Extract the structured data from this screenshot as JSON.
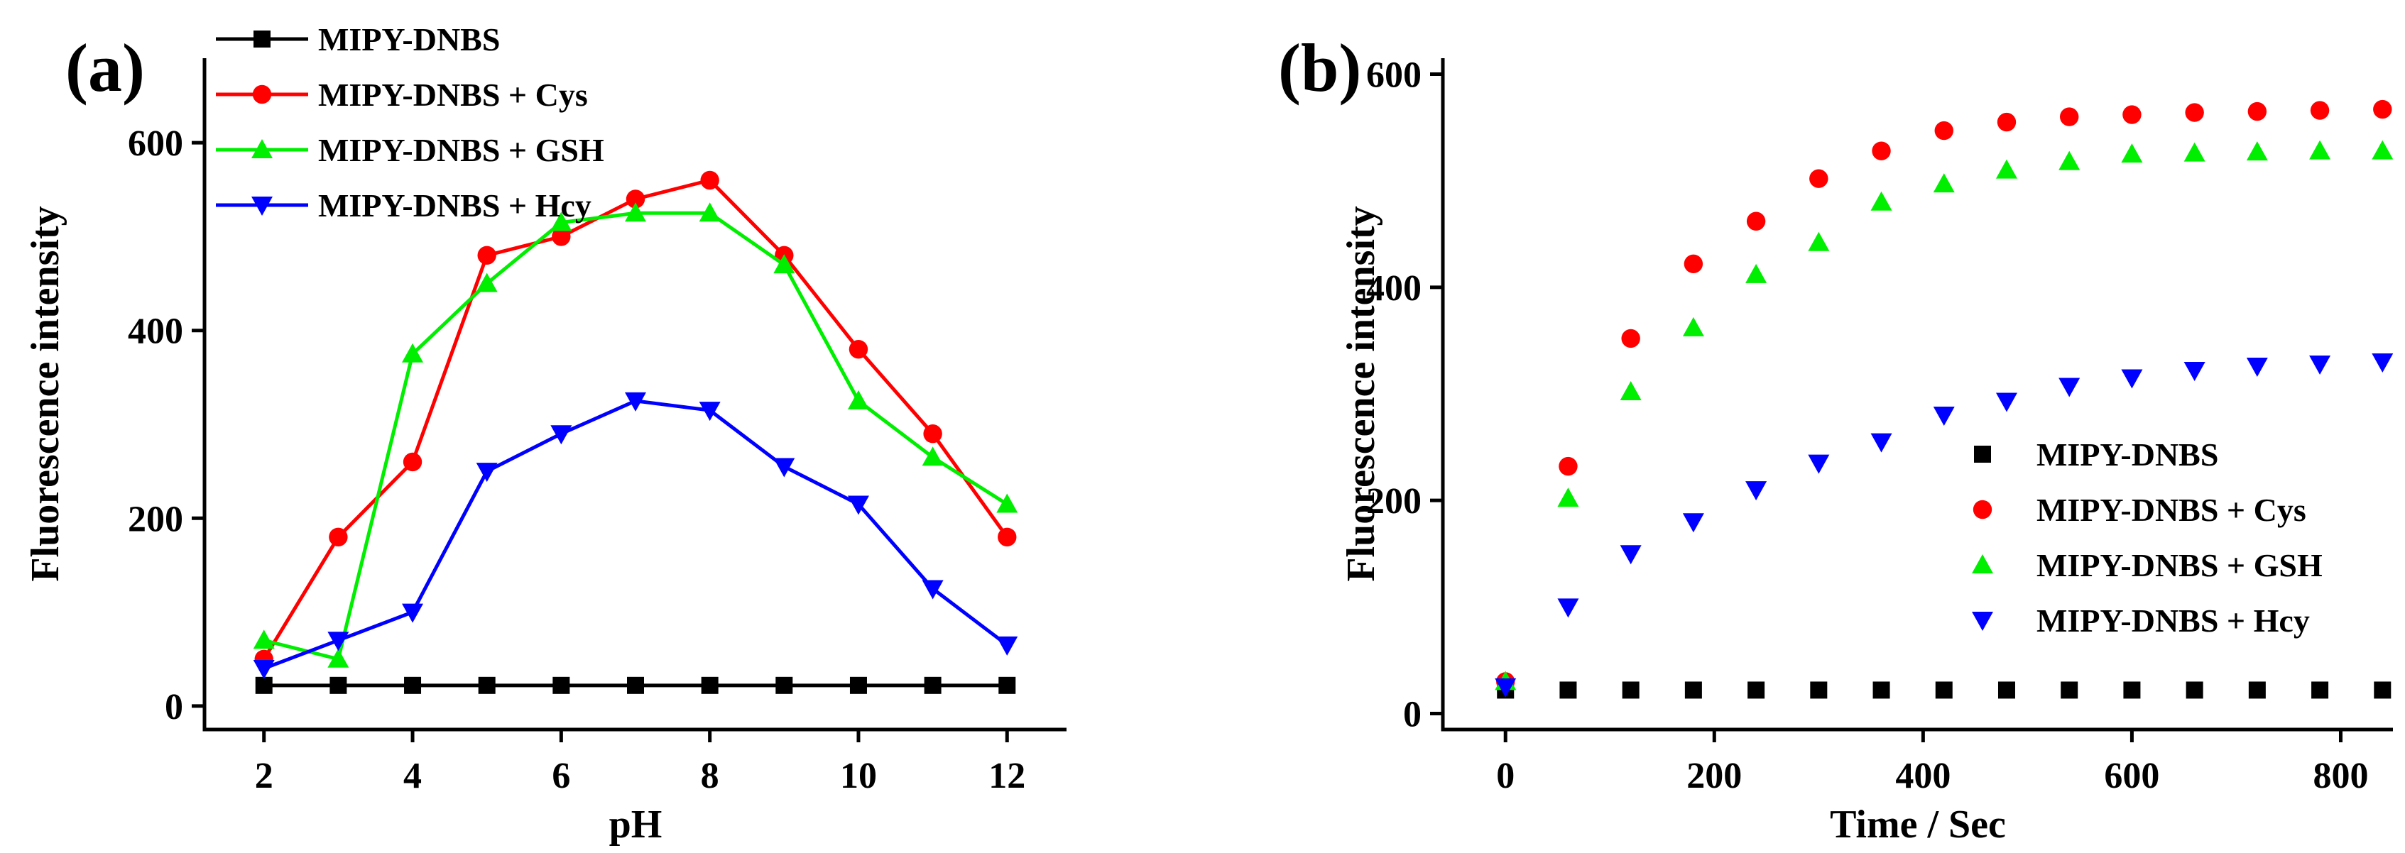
{
  "chart_data": [
    {
      "type": "line",
      "panel_label": "(a)",
      "xlabel": "pH",
      "ylabel": "Fluorescence intensity",
      "xlim": [
        1.2,
        12.8
      ],
      "ylim": [
        -25,
        690
      ],
      "xticks": [
        2,
        4,
        6,
        8,
        10,
        12
      ],
      "xtick_labels": [
        "2",
        "4",
        "6",
        "8",
        "10",
        "12"
      ],
      "yticks": [
        0,
        200,
        400,
        600
      ],
      "ytick_labels": [
        "0",
        "200",
        "400",
        "600"
      ],
      "legend_position": "top-left",
      "x": [
        2,
        3,
        4,
        5,
        6,
        7,
        8,
        9,
        10,
        11,
        12
      ],
      "series": [
        {
          "name": "MIPY-DNBS",
          "color": "#000000",
          "marker": "square",
          "values": [
            22,
            22,
            22,
            22,
            22,
            22,
            22,
            22,
            22,
            22,
            22
          ]
        },
        {
          "name": "MIPY-DNBS + Cys",
          "color": "#ff0000",
          "marker": "circle",
          "values": [
            50,
            180,
            260,
            480,
            500,
            540,
            560,
            480,
            380,
            290,
            180
          ]
        },
        {
          "name": "MIPY-DNBS + GSH",
          "color": "#00ee00",
          "marker": "triangle-up",
          "values": [
            70,
            50,
            375,
            450,
            515,
            525,
            525,
            470,
            325,
            265,
            215
          ]
        },
        {
          "name": "MIPY-DNBS + Hcy",
          "color": "#0000ff",
          "marker": "triangle-down",
          "values": [
            40,
            70,
            100,
            250,
            290,
            325,
            315,
            255,
            215,
            125,
            65
          ]
        }
      ]
    },
    {
      "type": "scatter",
      "panel_label": "(b)",
      "xlabel": "Time / Sec",
      "ylabel": "Fluorescence intensity",
      "xlim": [
        -60,
        850
      ],
      "ylim": [
        -15,
        615
      ],
      "xticks": [
        0,
        200,
        400,
        600,
        800
      ],
      "xtick_labels": [
        "0",
        "200",
        "400",
        "600",
        "800"
      ],
      "yticks": [
        0,
        200,
        400,
        600
      ],
      "ytick_labels": [
        "0",
        "200",
        "400",
        "600"
      ],
      "legend_position": "bottom-right",
      "x": [
        0,
        60,
        120,
        180,
        240,
        300,
        360,
        420,
        480,
        540,
        600,
        660,
        720,
        780,
        840
      ],
      "series": [
        {
          "name": "MIPY-DNBS",
          "color": "#000000",
          "marker": "square",
          "values": [
            22,
            22,
            22,
            22,
            22,
            22,
            22,
            22,
            22,
            22,
            22,
            22,
            22,
            22,
            22
          ]
        },
        {
          "name": "MIPY-DNBS + Cys",
          "color": "#ff0000",
          "marker": "circle",
          "values": [
            30,
            232,
            352,
            422,
            462,
            502,
            528,
            547,
            555,
            560,
            562,
            564,
            565,
            566,
            567
          ]
        },
        {
          "name": "MIPY-DNBS + GSH",
          "color": "#00ee00",
          "marker": "triangle-up",
          "values": [
            30,
            202,
            302,
            362,
            412,
            442,
            480,
            497,
            510,
            518,
            525,
            526,
            527,
            528,
            528
          ]
        },
        {
          "name": "MIPY-DNBS + Hcy",
          "color": "#0000ff",
          "marker": "triangle-down",
          "values": [
            25,
            100,
            150,
            180,
            210,
            235,
            255,
            280,
            293,
            307,
            315,
            322,
            326,
            328,
            330
          ]
        }
      ]
    }
  ]
}
